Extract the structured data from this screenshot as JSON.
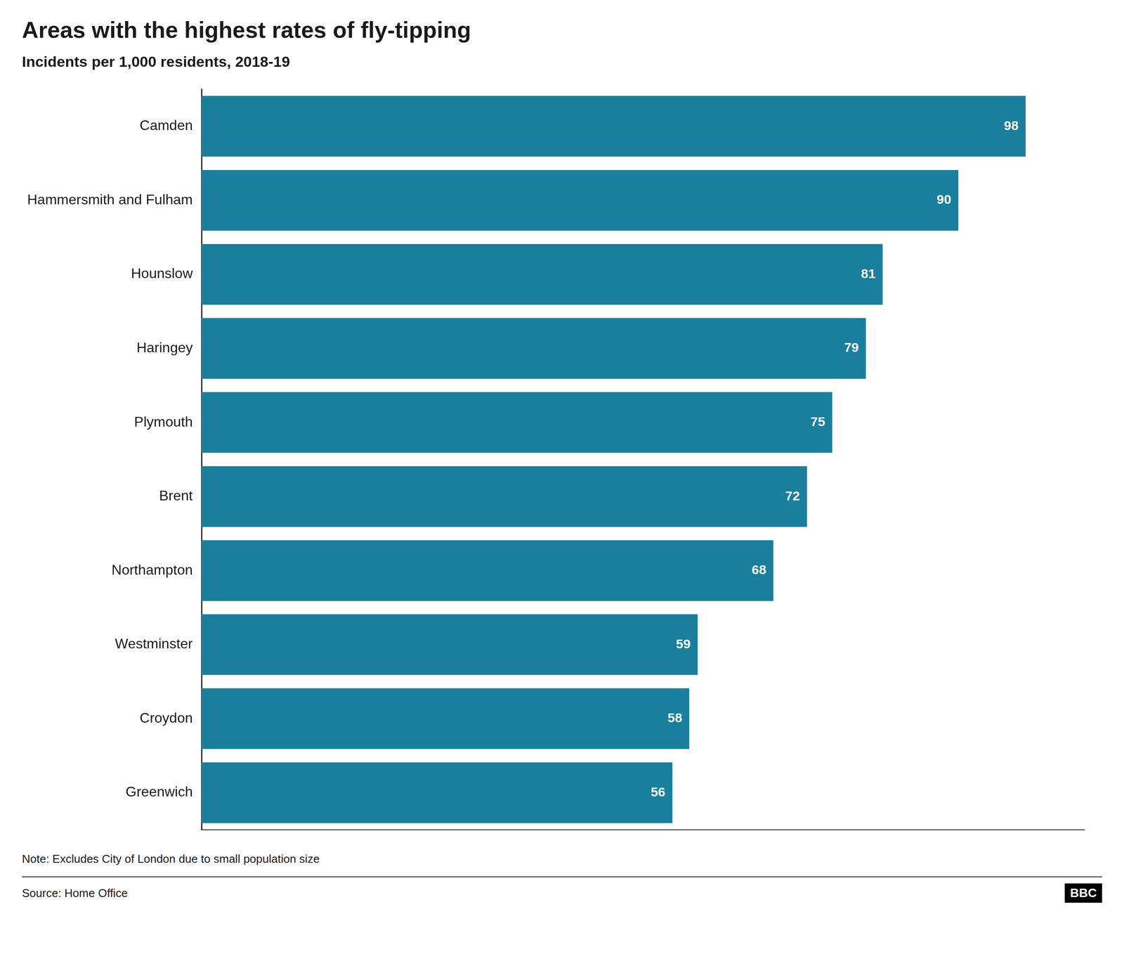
{
  "chart_data": {
    "type": "bar",
    "orientation": "horizontal",
    "title": "Areas with the highest rates of fly-tipping",
    "subtitle": "Incidents per 1,000 residents, 2018-19",
    "note": "Note: Excludes City of London due to small population size",
    "source": "Source: Home Office",
    "annotations": [
      "BBC"
    ],
    "categories": [
      "Camden",
      "Hammersmith and Fulham",
      "Hounslow",
      "Haringey",
      "Plymouth",
      "Brent",
      "Northampton",
      "Westminster",
      "Croydon",
      "Greenwich"
    ],
    "values": [
      98,
      90,
      81,
      79,
      75,
      72,
      68,
      59,
      58,
      56
    ],
    "color": "#1a7f9c",
    "xlim": [
      0,
      105
    ],
    "grid": false,
    "data_labels": true,
    "tick_labels": "y"
  }
}
